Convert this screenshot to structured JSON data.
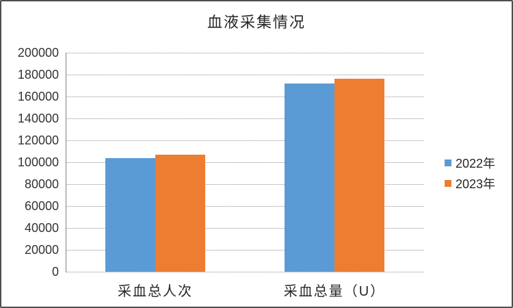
{
  "title": "血液采集情况",
  "colors": {
    "series_2022": "#5B9BD5",
    "series_2023": "#ED7D31",
    "axis_line": "#7f7f7f",
    "gridline": "#8f8f8f",
    "text": "#262626",
    "frame_border": "#4f4f4f",
    "background": "#ffffff"
  },
  "chart_data": {
    "type": "bar",
    "title": "血液采集情况",
    "categories": [
      "采血总人次",
      "采血总量（U）"
    ],
    "series": [
      {
        "name": "2022年",
        "color": "#5B9BD5",
        "values": [
          104000,
          172000
        ]
      },
      {
        "name": "2023年",
        "color": "#ED7D31",
        "values": [
          107000,
          176000
        ]
      }
    ],
    "ylim": [
      0,
      200000
    ],
    "y_tick_step": 20000,
    "y_tick_labels": [
      "0",
      "20000",
      "40000",
      "60000",
      "80000",
      "100000",
      "120000",
      "140000",
      "160000",
      "180000",
      "200000"
    ],
    "grid": "horizontal-dotted",
    "legend_position": "right",
    "bar_orientation": "vertical"
  }
}
